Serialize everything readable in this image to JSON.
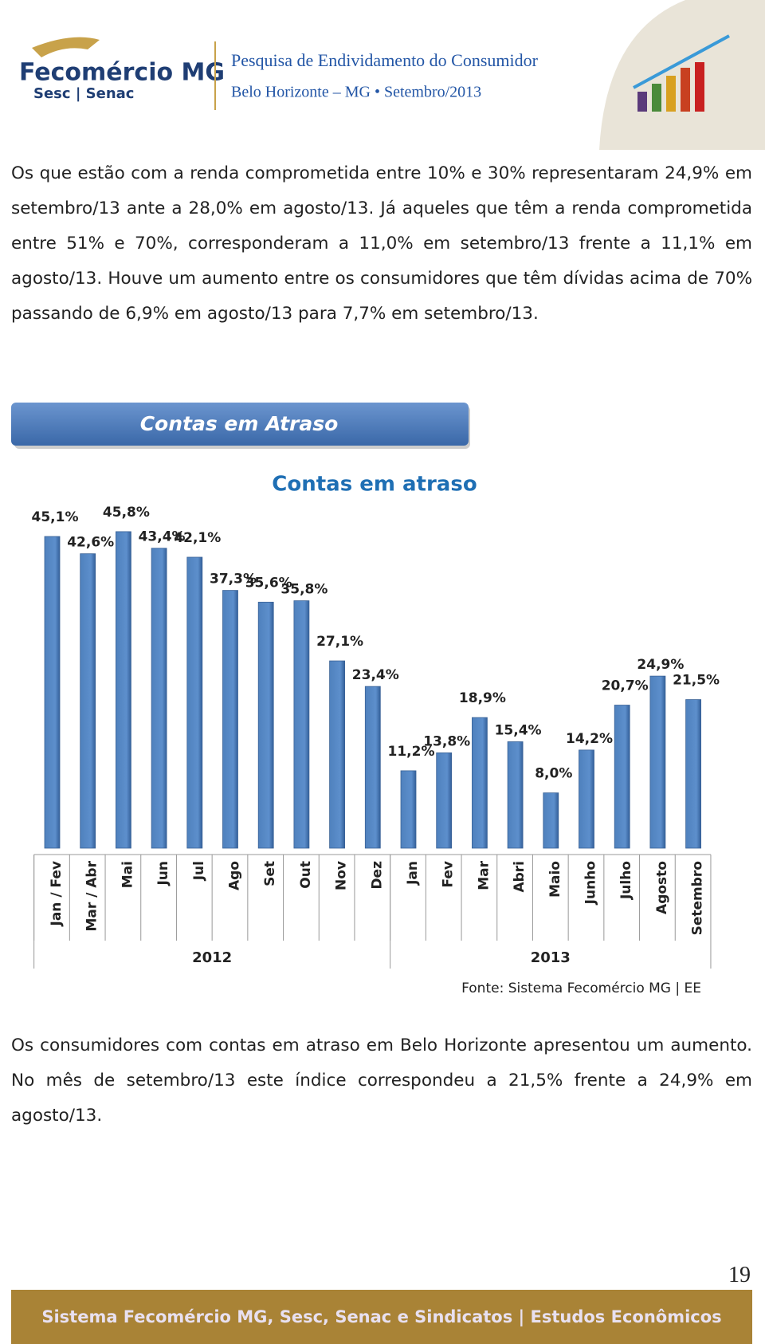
{
  "header": {
    "logo": "Fecomércio MG",
    "logo_sub": "Sesc | Senac",
    "title": "Pesquisa de Endividamento do Consumidor",
    "subtitle": "Belo Horizonte – MG • Setembro/2013"
  },
  "paragraphs": [
    "Os que estão com a renda comprometida entre 10% e 30% representaram 24,9% em setembro/13 ante a 28,0% em agosto/13. Já aqueles que têm a renda comprometida entre 51% e 70%, corresponderam a 11,0% em setembro/13 frente a 11,1% em agosto/13. Houve um aumento entre os consumidores que têm dívidas acima de 70% passando de 6,9% em agosto/13 para 7,7% em setembro/13.",
    "Os consumidores com contas em atraso em Belo Horizonte apresentou um aumento. No mês de setembro/13 este índice correspondeu a 21,5% frente a 24,9% em agosto/13."
  ],
  "banner": "Contas em Atraso",
  "chart_data": {
    "type": "bar",
    "title": "Contas em atraso",
    "color": "#4f81bd",
    "categories": [
      "Jan / Fev",
      "Mar / Abr",
      "Mai",
      "Jun",
      "Jul",
      "Ago",
      "Set",
      "Out",
      "Nov",
      "Dez",
      "Jan",
      "Fev",
      "Mar",
      "Abri",
      "Maio",
      "Junho",
      "Julho",
      "Agosto",
      "Setembro"
    ],
    "values": [
      45.1,
      42.6,
      45.8,
      43.4,
      42.1,
      37.3,
      35.6,
      35.8,
      27.1,
      23.4,
      11.2,
      13.8,
      18.9,
      15.4,
      8.0,
      14.2,
      20.7,
      24.9,
      21.5
    ],
    "value_labels": [
      "45,1%",
      "42,6%",
      "45,8%",
      "43,4%",
      "42,1%",
      "37,3%",
      "35,6%",
      "35,8%",
      "27,1%",
      "23,4%",
      "11,2%",
      "13,8%",
      "18,9%",
      "15,4%",
      "8,0%",
      "14,2%",
      "20,7%",
      "24,9%",
      "21,5%"
    ],
    "groups": [
      {
        "label": "2012",
        "count": 10
      },
      {
        "label": "2013",
        "count": 9
      }
    ],
    "source": "Fonte: Sistema Fecomércio MG | EE"
  },
  "page_number": "19",
  "footer": "Sistema Fecomércio MG, Sesc, Senac e Sindicatos | Estudos Econômicos"
}
